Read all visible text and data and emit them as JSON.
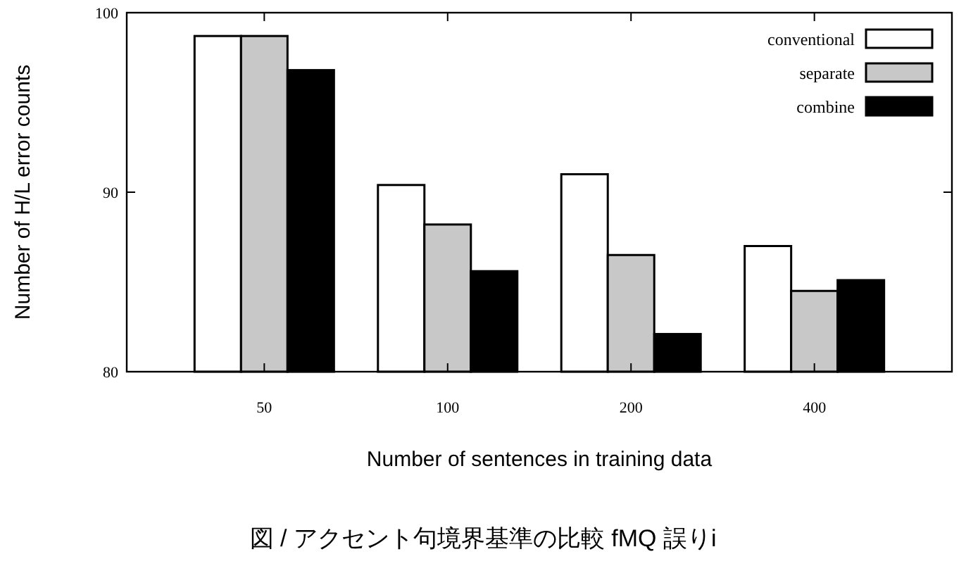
{
  "chart_data": {
    "type": "bar",
    "xlabel": "Number of sentences in training data",
    "ylabel": "Number of H/L error counts",
    "categories": [
      "50",
      "100",
      "200",
      "400"
    ],
    "series": [
      {
        "name": "conventional",
        "color": "#ffffff",
        "values": [
          98.7,
          90.4,
          91.0,
          87.0
        ]
      },
      {
        "name": "separate",
        "color": "#c8c8c8",
        "values": [
          98.7,
          88.2,
          86.5,
          84.5
        ]
      },
      {
        "name": "combine",
        "color": "#000000",
        "values": [
          96.8,
          85.6,
          82.1,
          85.1
        ]
      }
    ],
    "ylim": [
      80,
      100
    ],
    "yticks": [
      80,
      90,
      100
    ],
    "legend": "top right",
    "grid": false,
    "annotations": [
      "図 / アクセント句境界基準の比較 fMQ 誤りi"
    ]
  }
}
